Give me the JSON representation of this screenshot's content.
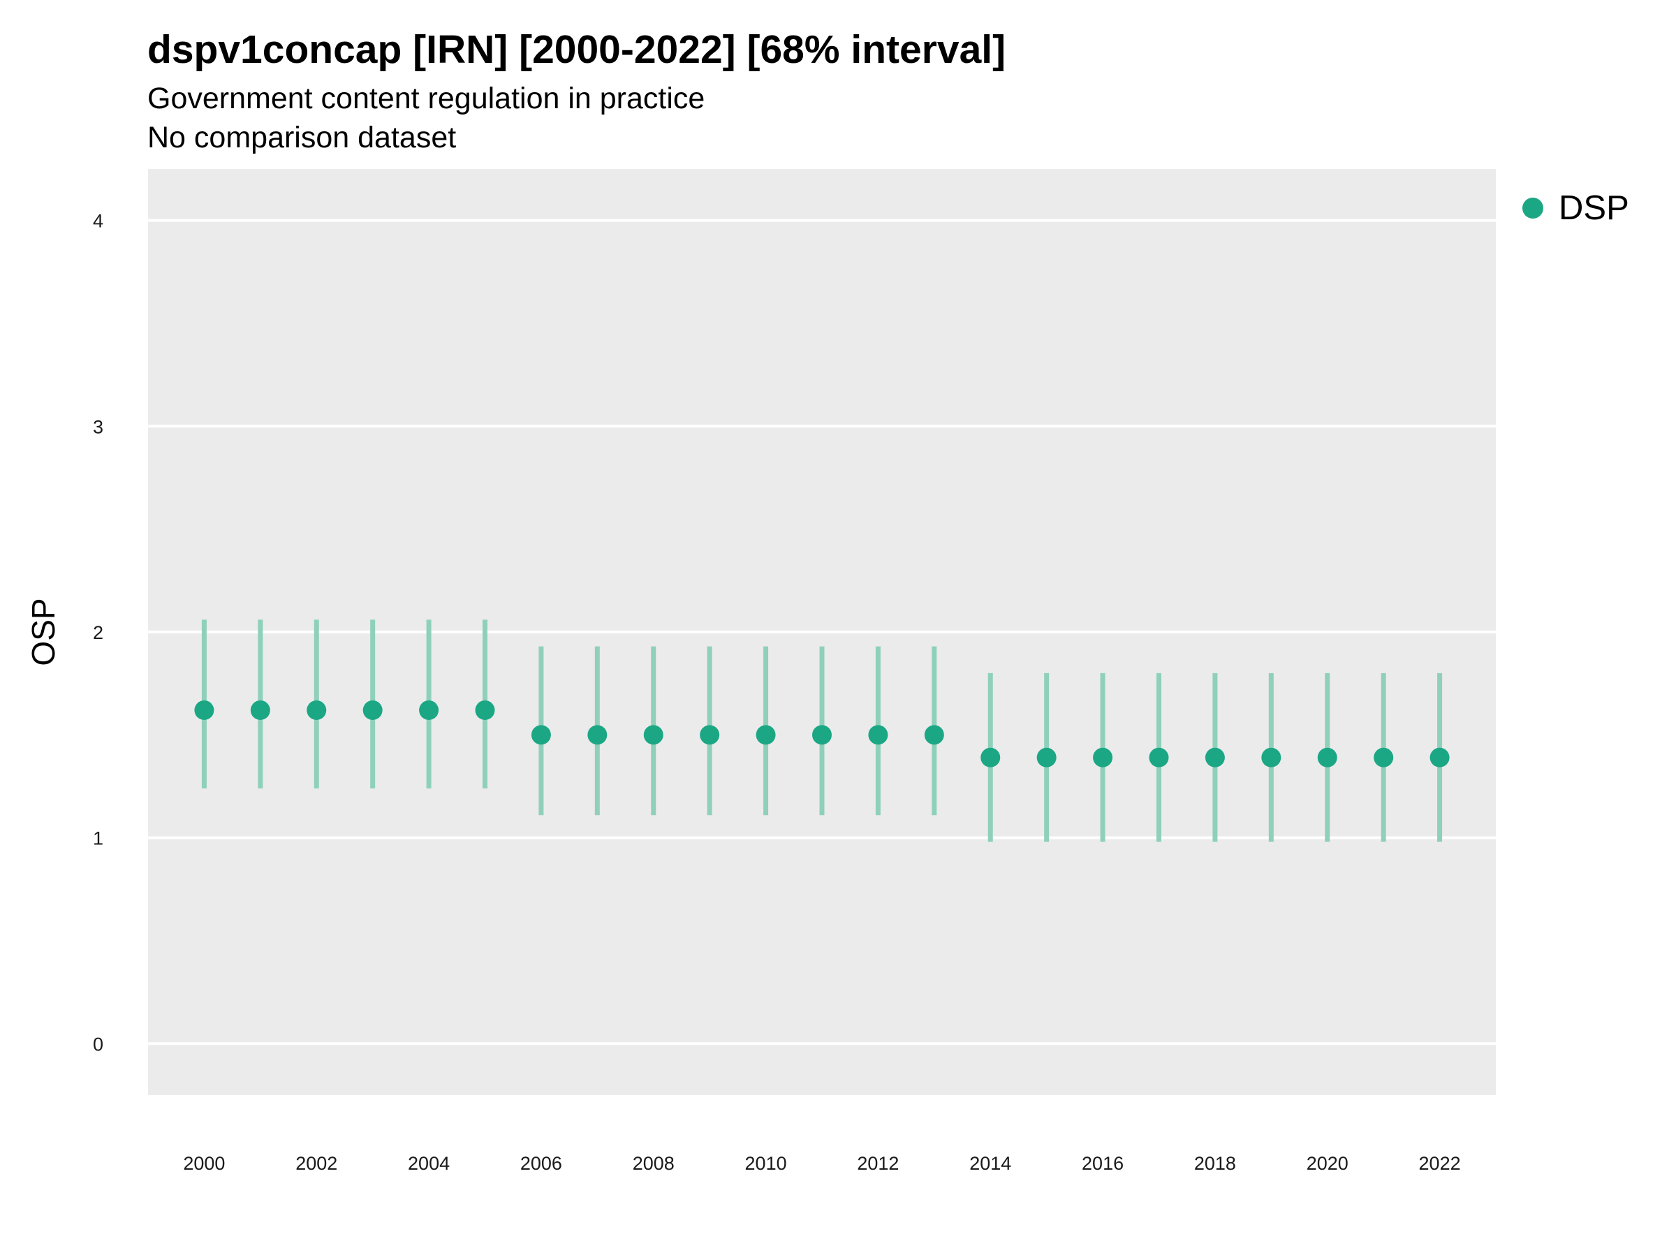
{
  "title": "dspv1concap [IRN] [2000-2022] [68% interval]",
  "subtitle": "Government content regulation in practice",
  "caption": "No comparison dataset",
  "colors": {
    "point": "#1ba784",
    "interval": "#8fd0bb",
    "panel": "#ebebeb",
    "grid": "#ffffff"
  },
  "chart_data": {
    "type": "scatter",
    "title": "dspv1concap [IRN] [2000-2022] [68% interval]",
    "subtitle": "Government content regulation in practice",
    "ylabel": "OSP",
    "xlabel": "",
    "ylim": [
      -0.25,
      4.25
    ],
    "xlim": [
      1999,
      2023
    ],
    "yticks": [
      0,
      1,
      2,
      3,
      4
    ],
    "xticks": [
      2000,
      2002,
      2004,
      2006,
      2008,
      2010,
      2012,
      2014,
      2016,
      2018,
      2020,
      2022
    ],
    "grid": "horizontal major lines only",
    "legend_position": "right-top",
    "series": [
      {
        "name": "DSP",
        "x": [
          2000,
          2001,
          2002,
          2003,
          2004,
          2005,
          2006,
          2007,
          2008,
          2009,
          2010,
          2011,
          2012,
          2013,
          2014,
          2015,
          2016,
          2017,
          2018,
          2019,
          2020,
          2021,
          2022
        ],
        "y": [
          1.62,
          1.62,
          1.62,
          1.62,
          1.62,
          1.62,
          1.5,
          1.5,
          1.5,
          1.5,
          1.5,
          1.5,
          1.5,
          1.5,
          1.39,
          1.39,
          1.39,
          1.39,
          1.39,
          1.39,
          1.39,
          1.39,
          1.39
        ],
        "lower": [
          1.24,
          1.24,
          1.24,
          1.24,
          1.24,
          1.24,
          1.11,
          1.11,
          1.11,
          1.11,
          1.11,
          1.11,
          1.11,
          1.11,
          0.98,
          0.98,
          0.98,
          0.98,
          0.98,
          0.98,
          0.98,
          0.98,
          0.98
        ],
        "upper": [
          2.06,
          2.06,
          2.06,
          2.06,
          2.06,
          2.06,
          1.93,
          1.93,
          1.93,
          1.93,
          1.93,
          1.93,
          1.93,
          1.93,
          1.8,
          1.8,
          1.8,
          1.8,
          1.8,
          1.8,
          1.8,
          1.8,
          1.8
        ]
      }
    ]
  }
}
